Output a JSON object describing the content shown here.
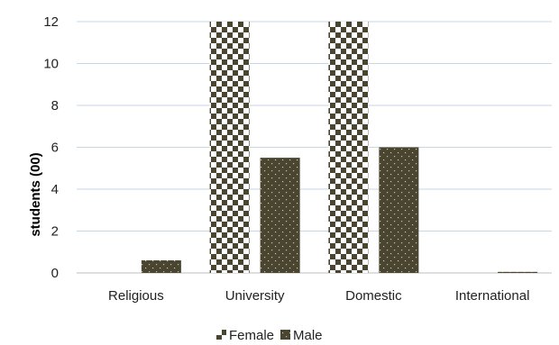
{
  "chart_data": {
    "type": "bar",
    "title": "",
    "xlabel": "",
    "ylabel": "students (00)",
    "ylim": [
      0,
      12
    ],
    "yticks": [
      0,
      2,
      4,
      6,
      8,
      10,
      12
    ],
    "grid": true,
    "legend_position": "bottom",
    "categories": [
      "Religious",
      "University",
      "Domestic",
      "International"
    ],
    "series": [
      {
        "name": "Female",
        "values": [
          0,
          12,
          12,
          0
        ],
        "pattern": "checkerboard",
        "color": "#4a4530"
      },
      {
        "name": "Male",
        "values": [
          0.6,
          5.5,
          6.0,
          0.05
        ],
        "pattern": "dotted-dark",
        "color": "#4a4530"
      }
    ]
  }
}
